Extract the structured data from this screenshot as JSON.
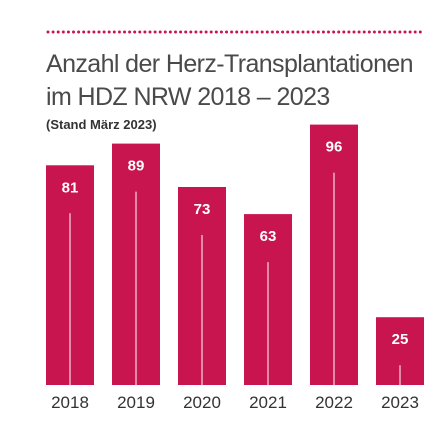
{
  "colors": {
    "bar": "#c8144f",
    "dots": "#c8144f",
    "bar_label": "#ffffff",
    "year_label": "#333333"
  },
  "chart_data": {
    "type": "bar",
    "title_lines": [
      "Anzahl der Herz-Transplantationen",
      "im HDZ NRW 2018 – 2023"
    ],
    "subtitle": "(Stand März 2023)",
    "categories": [
      "2018",
      "2019",
      "2020",
      "2021",
      "2022",
      "2023"
    ],
    "values": [
      81,
      89,
      73,
      63,
      96,
      25
    ],
    "data_labels": [
      "81",
      "89",
      "73",
      "63",
      "96",
      "25"
    ],
    "ylim": [
      0,
      100
    ],
    "grid": false,
    "legend": "none"
  }
}
